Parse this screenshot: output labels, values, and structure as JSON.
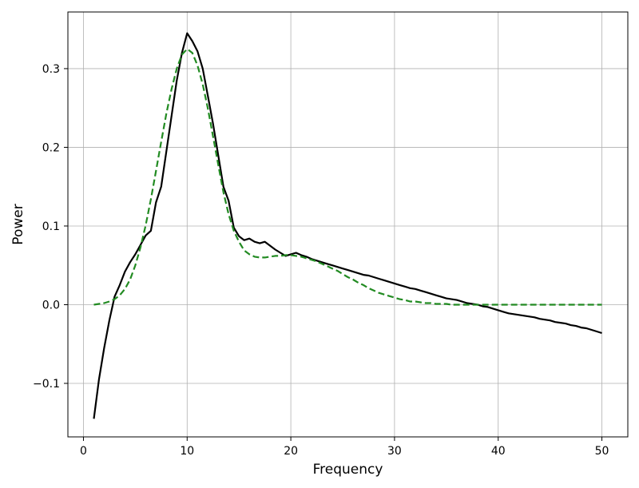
{
  "chart_data": {
    "type": "line",
    "title": "",
    "xlabel": "Frequency",
    "ylabel": "Power",
    "xlim": [
      -1.5,
      52.5
    ],
    "ylim": [
      -0.168,
      0.372
    ],
    "xticks": [
      0,
      10,
      20,
      30,
      40,
      50
    ],
    "yticks": [
      -0.1,
      0.0,
      0.1,
      0.2,
      0.3
    ],
    "ytick_labels": [
      "−0.1",
      "0.0",
      "0.1",
      "0.2",
      "0.3"
    ],
    "grid": true,
    "legend": "none",
    "series": [
      {
        "style": "solid",
        "color": "#000000",
        "x": [
          1,
          1.5,
          2,
          2.5,
          3,
          3.5,
          4,
          4.5,
          5,
          5.5,
          6,
          6.5,
          7,
          7.5,
          8,
          8.5,
          9,
          9.5,
          10,
          10.5,
          11,
          11.5,
          12,
          12.5,
          13,
          13.5,
          14,
          14.5,
          15,
          15.5,
          16,
          16.5,
          17,
          17.5,
          18,
          18.5,
          19,
          19.5,
          20,
          20.5,
          21,
          21.5,
          22,
          22.5,
          23,
          23.5,
          24,
          24.5,
          25,
          25.5,
          26,
          26.5,
          27,
          27.5,
          28,
          28.5,
          29,
          29.5,
          30,
          30.5,
          31,
          31.5,
          32,
          32.5,
          33,
          33.5,
          34,
          34.5,
          35,
          35.5,
          36,
          36.5,
          37,
          37.5,
          38,
          38.5,
          39,
          39.5,
          40,
          40.5,
          41,
          41.5,
          42,
          42.5,
          43,
          43.5,
          44,
          44.5,
          45,
          45.5,
          46,
          46.5,
          47,
          47.5,
          48,
          48.5,
          49,
          49.5,
          50
        ],
        "y": [
          -0.145,
          -0.095,
          -0.055,
          -0.02,
          0.01,
          0.025,
          0.042,
          0.054,
          0.064,
          0.076,
          0.088,
          0.094,
          0.13,
          0.15,
          0.195,
          0.24,
          0.285,
          0.32,
          0.345,
          0.335,
          0.322,
          0.3,
          0.265,
          0.23,
          0.19,
          0.15,
          0.132,
          0.098,
          0.087,
          0.082,
          0.084,
          0.08,
          0.078,
          0.08,
          0.075,
          0.07,
          0.066,
          0.062,
          0.064,
          0.066,
          0.063,
          0.061,
          0.058,
          0.056,
          0.054,
          0.052,
          0.05,
          0.048,
          0.046,
          0.044,
          0.042,
          0.04,
          0.038,
          0.037,
          0.035,
          0.033,
          0.031,
          0.029,
          0.027,
          0.025,
          0.023,
          0.021,
          0.02,
          0.018,
          0.016,
          0.014,
          0.012,
          0.01,
          0.008,
          0.007,
          0.006,
          0.004,
          0.002,
          0.001,
          0.0,
          -0.002,
          -0.003,
          -0.005,
          -0.007,
          -0.009,
          -0.011,
          -0.012,
          -0.013,
          -0.014,
          -0.015,
          -0.016,
          -0.018,
          -0.019,
          -0.02,
          -0.022,
          -0.023,
          -0.024,
          -0.026,
          -0.027,
          -0.029,
          -0.03,
          -0.032,
          -0.034,
          -0.036
        ]
      },
      {
        "style": "dashed",
        "color": "#228b22",
        "x": [
          1,
          1.5,
          2,
          2.5,
          3,
          3.5,
          4,
          4.5,
          5,
          5.5,
          6,
          6.5,
          7,
          7.5,
          8,
          8.5,
          9,
          9.5,
          10,
          10.5,
          11,
          11.5,
          12,
          12.5,
          13,
          13.5,
          14,
          14.5,
          15,
          15.5,
          16,
          16.5,
          17,
          17.5,
          18,
          18.5,
          19,
          19.5,
          20,
          20.5,
          21,
          21.5,
          22,
          22.5,
          23,
          23.5,
          24,
          24.5,
          25,
          25.5,
          26,
          26.5,
          27,
          27.5,
          28,
          28.5,
          29,
          29.5,
          30,
          30.5,
          31,
          31.5,
          32,
          32.5,
          33,
          33.5,
          34,
          34.5,
          35,
          35.5,
          36,
          36.5,
          37,
          37.5,
          38,
          38.5,
          39,
          39.5,
          40,
          40.5,
          41,
          41.5,
          42,
          42.5,
          43,
          43.5,
          44,
          44.5,
          45,
          45.5,
          46,
          46.5,
          47,
          47.5,
          48,
          48.5,
          49,
          49.5,
          50
        ],
        "y": [
          0.0,
          0.001,
          0.002,
          0.004,
          0.007,
          0.012,
          0.02,
          0.032,
          0.05,
          0.073,
          0.101,
          0.134,
          0.17,
          0.207,
          0.243,
          0.274,
          0.3,
          0.318,
          0.325,
          0.32,
          0.304,
          0.28,
          0.249,
          0.214,
          0.178,
          0.143,
          0.115,
          0.094,
          0.08,
          0.069,
          0.064,
          0.061,
          0.06,
          0.06,
          0.061,
          0.062,
          0.062,
          0.063,
          0.063,
          0.062,
          0.061,
          0.059,
          0.057,
          0.055,
          0.052,
          0.049,
          0.046,
          0.043,
          0.039,
          0.035,
          0.032,
          0.028,
          0.025,
          0.021,
          0.018,
          0.015,
          0.013,
          0.011,
          0.009,
          0.007,
          0.006,
          0.004,
          0.004,
          0.003,
          0.002,
          0.002,
          0.001,
          0.001,
          0.001,
          0.0,
          0.0,
          0.0,
          0.0,
          0.0,
          0.0,
          0.0,
          0.0,
          0.0,
          0.0,
          0.0,
          0.0,
          0.0,
          0.0,
          0.0,
          0.0,
          0.0,
          0.0,
          0.0,
          0.0,
          0.0,
          0.0,
          0.0,
          0.0,
          0.0,
          0.0,
          0.0,
          0.0,
          0.0,
          0.0
        ]
      }
    ]
  }
}
